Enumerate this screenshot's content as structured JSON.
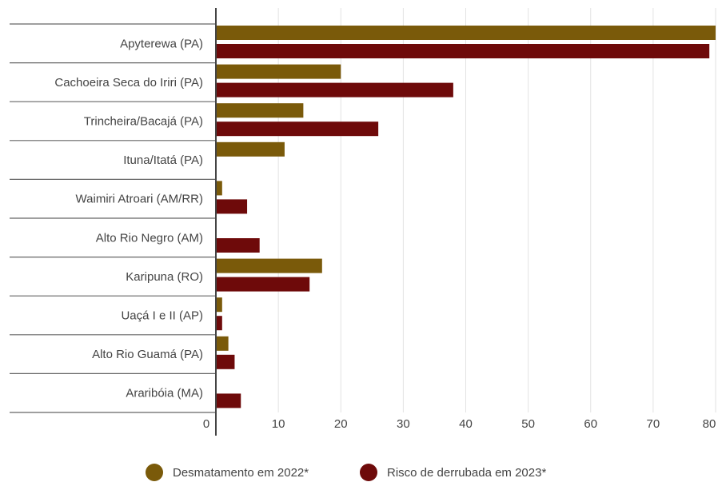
{
  "chart_data": {
    "type": "bar",
    "orientation": "horizontal",
    "categories": [
      "Apyterewa (PA)",
      "Cachoeira Seca do Iriri (PA)",
      "Trincheira/Bacajá (PA)",
      "Ituna/Itatá (PA)",
      "Waimiri Atroari (AM/RR)",
      "Alto Rio Negro (AM)",
      "Karipuna (RO)",
      "Uaçá I e II (AP)",
      "Alto Rio Guamá (PA)",
      "Araribóia (MA)"
    ],
    "series": [
      {
        "name": "Desmatamento em 2022*",
        "color": "#7a5a0a",
        "values": [
          80,
          20,
          14,
          11,
          1,
          0,
          17,
          1,
          2,
          0
        ]
      },
      {
        "name": "Risco de derrubada em 2023*",
        "color": "#6e0a0a",
        "values": [
          79,
          38,
          26,
          0,
          5,
          7,
          15,
          1,
          3,
          4
        ]
      }
    ],
    "xlim": [
      0,
      80
    ],
    "xticks": [
      0,
      10,
      20,
      30,
      40,
      50,
      60,
      70,
      80
    ],
    "grid": true,
    "legend_position": "bottom"
  }
}
